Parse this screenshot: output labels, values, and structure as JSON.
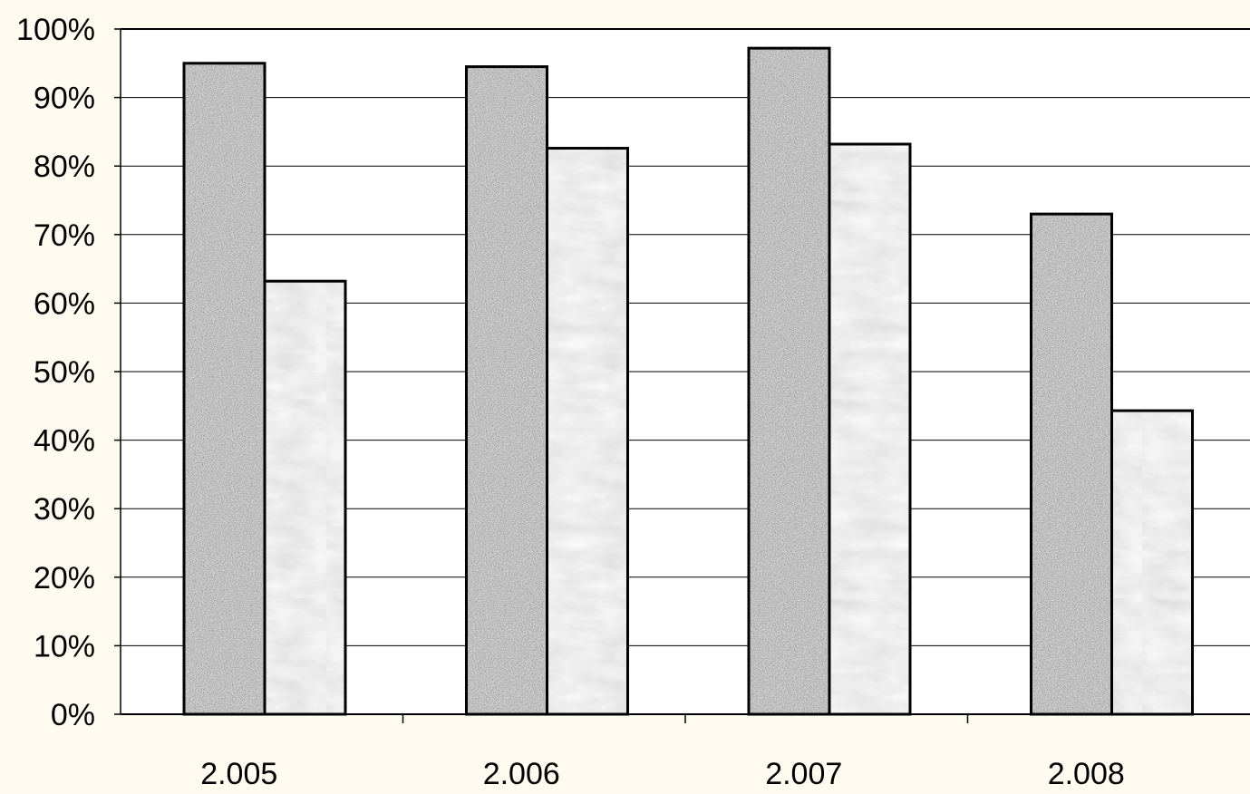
{
  "chart_data": {
    "type": "bar",
    "title": "",
    "xlabel": "",
    "ylabel": "",
    "categories": [
      "2.005",
      "2.006",
      "2.007",
      "2.008"
    ],
    "series": [
      {
        "values": [
          95,
          94.5,
          97.2,
          73
        ],
        "color": "#7a7a7a",
        "pattern": "granite-speckle"
      },
      {
        "values": [
          63.2,
          82.6,
          83.2,
          44.3
        ],
        "color": "#e6e6e6",
        "pattern": "light-marble"
      }
    ],
    "ylim": [
      0,
      100
    ],
    "yticks": [
      "0%",
      "10%",
      "20%",
      "30%",
      "40%",
      "50%",
      "60%",
      "70%",
      "80%",
      "90%",
      "100%"
    ],
    "grid": true,
    "legend": "none",
    "colors": {
      "background": "#fffbf0",
      "plot_background": "#ffffff",
      "gridline": "#000000",
      "bar_outline": "#000000"
    }
  }
}
